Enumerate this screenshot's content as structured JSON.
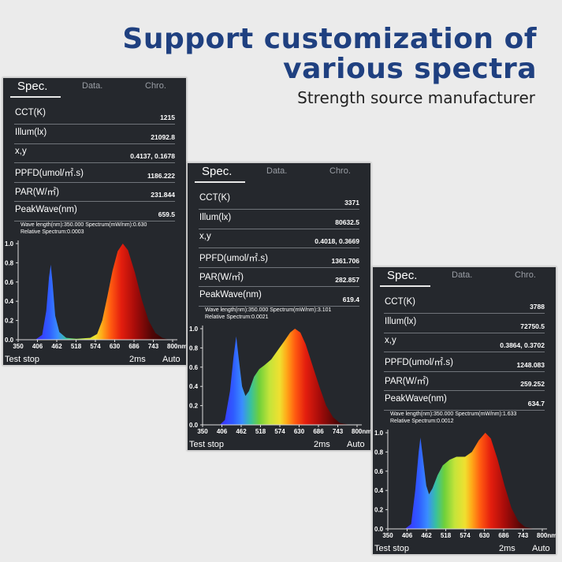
{
  "header": {
    "title_line1": "Support customization of",
    "title_line2": "various spectra",
    "subtitle": "Strength source manufacturer",
    "title_color": "#1f4080"
  },
  "panels": [
    {
      "tabs": [
        "Spec.",
        "Data.",
        "Chro."
      ],
      "active_tab": "Spec.",
      "rows": [
        {
          "label": "CCT(K)",
          "value": "1215"
        },
        {
          "label": "Illum(lx)",
          "value": "21092.8"
        },
        {
          "label": "x,y",
          "value": "0.4137, 0.1678"
        },
        {
          "label": "PPFD(umol/㎡.s)",
          "value": "1186.222"
        },
        {
          "label": "PAR(W/㎡)",
          "value": "231.844"
        },
        {
          "label": "PeakWave(nm)",
          "value": "659.5"
        }
      ],
      "info_line1": "Wave length(nm):350.000   Spectrum(mW/nm):0.630",
      "info_line2": "Relative Spectrum:0.0003",
      "status": "Test stop",
      "exposure": "2ms",
      "mode": "Auto"
    },
    {
      "tabs": [
        "Spec.",
        "Data.",
        "Chro."
      ],
      "active_tab": "Spec.",
      "rows": [
        {
          "label": "CCT(K)",
          "value": "3371"
        },
        {
          "label": "Illum(lx)",
          "value": "80632.5"
        },
        {
          "label": "x,y",
          "value": "0.4018, 0.3669"
        },
        {
          "label": "PPFD(umol/㎡.s)",
          "value": "1361.706"
        },
        {
          "label": "PAR(W/㎡)",
          "value": "282.857"
        },
        {
          "label": "PeakWave(nm)",
          "value": "619.4"
        }
      ],
      "info_line1": "Wave length(nm):350.000   Spectrum(mW/nm):3.101",
      "info_line2": "Relative Spectrum:0.0021",
      "status": "Test stop",
      "exposure": "2ms",
      "mode": "Auto"
    },
    {
      "tabs": [
        "Spec.",
        "Data.",
        "Chro."
      ],
      "active_tab": "Spec.",
      "rows": [
        {
          "label": "CCT(K)",
          "value": "3788"
        },
        {
          "label": "Illum(lx)",
          "value": "72750.5"
        },
        {
          "label": "x,y",
          "value": "0.3864, 0.3702"
        },
        {
          "label": "PPFD(umol/㎡.s)",
          "value": "1248.083"
        },
        {
          "label": "PAR(W/㎡)",
          "value": "259.252"
        },
        {
          "label": "PeakWave(nm)",
          "value": "634.7"
        }
      ],
      "info_line1": "Wave length(nm):350.000   Spectrum(mW/nm):1.633",
      "info_line2": "Relative Spectrum:0.0012",
      "status": "Test stop",
      "exposure": "2ms",
      "mode": "Auto"
    }
  ],
  "chart_data": [
    {
      "type": "area",
      "xlim": [
        350,
        800
      ],
      "ylim": [
        0,
        1.0
      ],
      "x_ticks": [
        "350",
        "406",
        "462",
        "518",
        "574",
        "630",
        "686",
        "743",
        "800nm"
      ],
      "y_ticks": [
        "0.0",
        "0.2",
        "0.4",
        "0.6",
        "0.8",
        "1.0"
      ],
      "fill": "visible-spectrum gradient",
      "points": [
        [
          350,
          0
        ],
        [
          400,
          0
        ],
        [
          420,
          0.05
        ],
        [
          432,
          0.3
        ],
        [
          440,
          0.65
        ],
        [
          445,
          0.78
        ],
        [
          450,
          0.6
        ],
        [
          458,
          0.25
        ],
        [
          470,
          0.08
        ],
        [
          490,
          0.02
        ],
        [
          520,
          0.01
        ],
        [
          560,
          0.02
        ],
        [
          580,
          0.06
        ],
        [
          595,
          0.2
        ],
        [
          610,
          0.45
        ],
        [
          625,
          0.72
        ],
        [
          640,
          0.92
        ],
        [
          655,
          1.0
        ],
        [
          670,
          0.93
        ],
        [
          690,
          0.7
        ],
        [
          710,
          0.42
        ],
        [
          730,
          0.2
        ],
        [
          750,
          0.07
        ],
        [
          770,
          0.02
        ],
        [
          790,
          0
        ]
      ]
    },
    {
      "type": "area",
      "xlim": [
        350,
        800
      ],
      "ylim": [
        0,
        1.0
      ],
      "x_ticks": [
        "350",
        "406",
        "462",
        "518",
        "574",
        "630",
        "686",
        "743",
        "800nm"
      ],
      "y_ticks": [
        "0.0",
        "0.2",
        "0.4",
        "0.6",
        "0.8",
        "1.0"
      ],
      "fill": "visible-spectrum gradient",
      "points": [
        [
          400,
          0
        ],
        [
          415,
          0.05
        ],
        [
          430,
          0.35
        ],
        [
          440,
          0.7
        ],
        [
          448,
          0.92
        ],
        [
          455,
          0.7
        ],
        [
          465,
          0.4
        ],
        [
          475,
          0.3
        ],
        [
          485,
          0.35
        ],
        [
          500,
          0.5
        ],
        [
          515,
          0.58
        ],
        [
          530,
          0.62
        ],
        [
          550,
          0.68
        ],
        [
          570,
          0.78
        ],
        [
          590,
          0.88
        ],
        [
          605,
          0.96
        ],
        [
          619,
          1.0
        ],
        [
          635,
          0.96
        ],
        [
          650,
          0.84
        ],
        [
          670,
          0.62
        ],
        [
          690,
          0.4
        ],
        [
          710,
          0.2
        ],
        [
          730,
          0.08
        ],
        [
          750,
          0.02
        ],
        [
          780,
          0
        ]
      ]
    },
    {
      "type": "area",
      "xlim": [
        350,
        800
      ],
      "ylim": [
        0,
        1.0
      ],
      "x_ticks": [
        "350",
        "406",
        "462",
        "518",
        "574",
        "630",
        "686",
        "743",
        "800nm"
      ],
      "y_ticks": [
        "0.0",
        "0.2",
        "0.4",
        "0.6",
        "0.8",
        "1.0"
      ],
      "fill": "visible-spectrum gradient",
      "points": [
        [
          400,
          0
        ],
        [
          418,
          0.05
        ],
        [
          430,
          0.4
        ],
        [
          440,
          0.8
        ],
        [
          445,
          0.95
        ],
        [
          452,
          0.75
        ],
        [
          462,
          0.45
        ],
        [
          470,
          0.36
        ],
        [
          480,
          0.42
        ],
        [
          495,
          0.56
        ],
        [
          510,
          0.66
        ],
        [
          530,
          0.72
        ],
        [
          550,
          0.75
        ],
        [
          575,
          0.75
        ],
        [
          595,
          0.8
        ],
        [
          615,
          0.92
        ],
        [
          634,
          1.0
        ],
        [
          650,
          0.94
        ],
        [
          670,
          0.72
        ],
        [
          690,
          0.45
        ],
        [
          710,
          0.22
        ],
        [
          730,
          0.08
        ],
        [
          750,
          0.02
        ],
        [
          780,
          0
        ]
      ]
    }
  ]
}
